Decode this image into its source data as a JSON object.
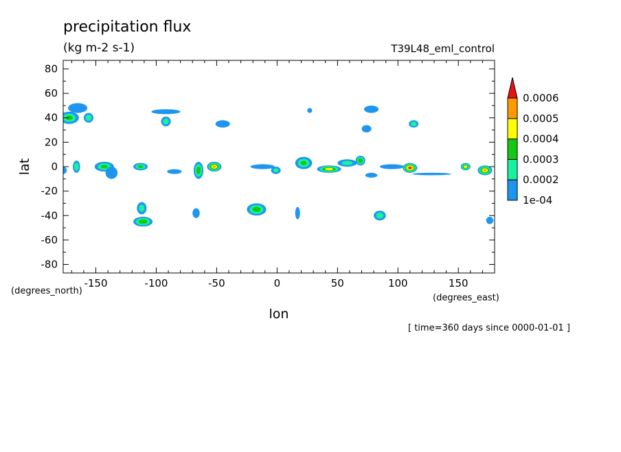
{
  "chart_data": {
    "type": "heatmap",
    "title": "precipitation flux",
    "units": "(kg m-2 s-1)",
    "experiment": "T39L48_eml_control",
    "xlabel": "lon",
    "ylabel": "lat",
    "x_units": "(degrees_east)",
    "y_units": "(degrees_north)",
    "time_label": "[ time=360 days since 0000-01-01 ]",
    "xlim": [
      -177,
      180
    ],
    "ylim": [
      -87,
      87
    ],
    "x_ticks": [
      -150,
      -100,
      -50,
      0,
      50,
      100,
      150
    ],
    "x_tick_labels": [
      "-150",
      "-100",
      "-50",
      "0",
      "50",
      "100",
      "150"
    ],
    "y_ticks": [
      80,
      60,
      40,
      20,
      0,
      -20,
      -40,
      -60,
      -80
    ],
    "y_tick_labels": [
      "80",
      "60",
      "40",
      "20",
      "0",
      "-20",
      "-40",
      "-60",
      "-80"
    ],
    "grid": false,
    "colorbar": {
      "placement": "right",
      "levels": [
        0.0001,
        0.0002,
        0.0003,
        0.0004,
        0.0005,
        0.0006
      ],
      "level_labels": [
        "1e-04",
        "0.0002",
        "0.0003",
        "0.0004",
        "0.0005",
        "0.0006"
      ],
      "colors": [
        "#1E96F0",
        "#19F0A0",
        "#14C814",
        "#FFFF00",
        "#FF9B00",
        "#E61414"
      ]
    },
    "blobs": [
      {
        "lon": -172,
        "lat": 40,
        "rlon": 8,
        "rlat": 5,
        "max": 0.00031
      },
      {
        "lon": -165,
        "lat": 48,
        "rlon": 8,
        "rlat": 4,
        "max": 0.00015
      },
      {
        "lon": -156,
        "lat": 40,
        "rlon": 4,
        "rlat": 4,
        "max": 0.00028
      },
      {
        "lon": -92,
        "lat": 37,
        "rlon": 4,
        "rlat": 4,
        "max": 0.00026
      },
      {
        "lon": -92,
        "lat": 45,
        "rlon": 12,
        "rlat": 2,
        "max": 0.00014
      },
      {
        "lon": -45,
        "lat": 35,
        "rlon": 6,
        "rlat": 3,
        "max": 0.00016
      },
      {
        "lon": 27,
        "lat": 46,
        "rlon": 2,
        "rlat": 2,
        "max": 0.00013
      },
      {
        "lon": 78,
        "lat": 47,
        "rlon": 6,
        "rlat": 3,
        "max": 0.00016
      },
      {
        "lon": 74,
        "lat": 31,
        "rlon": 4,
        "rlat": 3,
        "max": 0.00017
      },
      {
        "lon": 113,
        "lat": 35,
        "rlon": 4,
        "rlat": 3,
        "max": 0.00027
      },
      {
        "lon": -177,
        "lat": -3,
        "rlon": 3,
        "rlat": 3,
        "max": 0.00015
      },
      {
        "lon": -166,
        "lat": 0,
        "rlon": 3,
        "rlat": 5,
        "max": 0.00029
      },
      {
        "lon": -143,
        "lat": 0,
        "rlon": 8,
        "rlat": 4,
        "max": 0.00031
      },
      {
        "lon": -137,
        "lat": -5,
        "rlon": 5,
        "rlat": 5,
        "max": 0.00014
      },
      {
        "lon": -113,
        "lat": 0,
        "rlon": 6,
        "rlat": 3,
        "max": 0.00032
      },
      {
        "lon": -85,
        "lat": -4,
        "rlon": 6,
        "rlat": 2,
        "max": 0.00013
      },
      {
        "lon": -65,
        "lat": -3,
        "rlon": 4,
        "rlat": 7,
        "max": 0.00036
      },
      {
        "lon": -52,
        "lat": 0,
        "rlon": 6,
        "rlat": 4,
        "max": 0.00051
      },
      {
        "lon": -1,
        "lat": -3,
        "rlon": 4,
        "rlat": 3,
        "max": 0.00022
      },
      {
        "lon": -12,
        "lat": 0,
        "rlon": 10,
        "rlat": 2,
        "max": 0.00013
      },
      {
        "lon": 22,
        "lat": 3,
        "rlon": 7,
        "rlat": 5,
        "max": 0.00031
      },
      {
        "lon": 43,
        "lat": -2,
        "rlon": 10,
        "rlat": 3,
        "max": 0.00045
      },
      {
        "lon": 58,
        "lat": 3,
        "rlon": 8,
        "rlat": 3,
        "max": 0.00024
      },
      {
        "lon": 69,
        "lat": 5,
        "rlon": 4,
        "rlat": 4,
        "max": 0.00039
      },
      {
        "lon": 78,
        "lat": -7,
        "rlon": 5,
        "rlat": 2,
        "max": 0.00012
      },
      {
        "lon": 110,
        "lat": -1,
        "rlon": 6,
        "rlat": 4,
        "max": 0.00062
      },
      {
        "lon": 95,
        "lat": 0,
        "rlon": 10,
        "rlat": 2,
        "max": 0.00014
      },
      {
        "lon": 128,
        "lat": -6,
        "rlon": 16,
        "rlat": 1,
        "max": 0.00013
      },
      {
        "lon": 156,
        "lat": 0,
        "rlon": 4,
        "rlat": 3,
        "max": 0.00048
      },
      {
        "lon": 172,
        "lat": -3,
        "rlon": 6,
        "rlat": 4,
        "max": 0.00051
      },
      {
        "lon": -112,
        "lat": -34,
        "rlon": 4,
        "rlat": 5,
        "max": 0.00024
      },
      {
        "lon": -111,
        "lat": -45,
        "rlon": 8,
        "rlat": 4,
        "max": 0.00037
      },
      {
        "lon": -67,
        "lat": -38,
        "rlon": 3,
        "rlat": 4,
        "max": 0.00014
      },
      {
        "lon": -17,
        "lat": -35,
        "rlon": 8,
        "rlat": 5,
        "max": 0.00035
      },
      {
        "lon": 17,
        "lat": -38,
        "rlon": 2,
        "rlat": 5,
        "max": 0.00013
      },
      {
        "lon": 85,
        "lat": -40,
        "rlon": 5,
        "rlat": 4,
        "max": 0.00027
      },
      {
        "lon": 176,
        "lat": -44,
        "rlon": 3,
        "rlat": 3,
        "max": 0.00015
      }
    ]
  }
}
